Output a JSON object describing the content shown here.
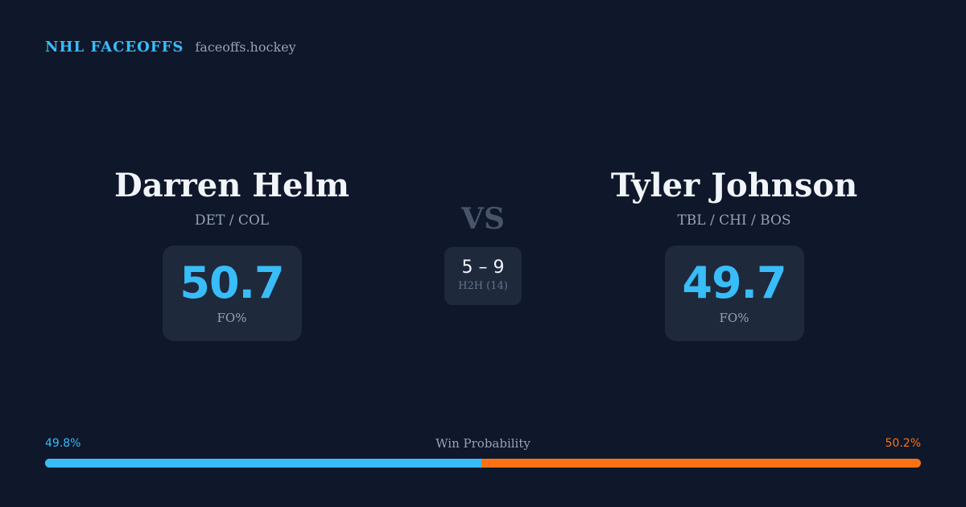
{
  "brand": {
    "name": "NHL FACEOFFS",
    "domain": "faceoffs.hockey"
  },
  "player_left": {
    "name": "Darren Helm",
    "teams": "DET / COL",
    "fo_pct": "50.7",
    "fo_label": "FO%"
  },
  "player_right": {
    "name": "Tyler Johnson",
    "teams": "TBL / CHI / BOS",
    "fo_pct": "49.7",
    "fo_label": "FO%"
  },
  "vs_label": "VS",
  "h2h": {
    "score": "5 – 9",
    "label": "H2H (14)"
  },
  "win_probability": {
    "title": "Win Probability",
    "left_label": "49.8%",
    "right_label": "50.2%",
    "left_value": 0.498,
    "left_color": "#38bdf8",
    "right_color": "#f97316"
  },
  "colors": {
    "background": "#0f172a",
    "card": "#1e293b",
    "accent": "#38bdf8",
    "secondary_accent": "#f97316"
  }
}
